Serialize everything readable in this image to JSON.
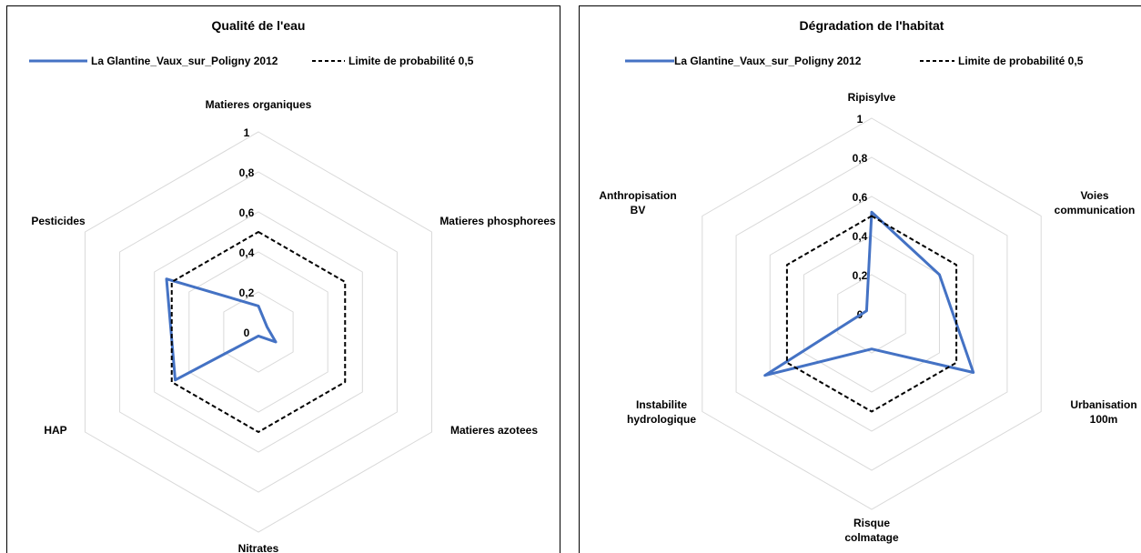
{
  "chart_data": [
    {
      "type": "radar",
      "title": "Qualité de l'eau",
      "axes": [
        "Matieres organiques",
        "Matieres phosphorees",
        "Matieres azotees",
        "Nitrates",
        "HAP",
        "Pesticides"
      ],
      "rlim": [
        0,
        1
      ],
      "ticks": [
        "0",
        "0,2",
        "0,4",
        "0,6",
        "0,8",
        "1"
      ],
      "grid": true,
      "legend_position": "top",
      "series": [
        {
          "name": "La Glantine_Vaux_sur_Poligny 2012",
          "values": [
            0.13,
            0.05,
            0.1,
            0.02,
            0.48,
            0.53
          ],
          "color": "#4472c4",
          "style": "solid"
        },
        {
          "name": "Limite de probabilité 0,5",
          "values": [
            0.5,
            0.5,
            0.5,
            0.5,
            0.5,
            0.5
          ],
          "color": "#000000",
          "style": "dashed"
        }
      ]
    },
    {
      "type": "radar",
      "title": "Dégradation de l'habitat",
      "axes": [
        "Ripisylve",
        "Voies communication",
        "Urbanisation 100m",
        "Risque colmatage",
        "Instabilite hydrologique",
        "Anthropisation BV"
      ],
      "rlim": [
        0,
        1
      ],
      "ticks": [
        "0",
        "0,2",
        "0,4",
        "0,6",
        "0,8",
        "1"
      ],
      "grid": true,
      "legend_position": "top",
      "series": [
        {
          "name": "La Glantine_Vaux_sur_Poligny 2012",
          "values": [
            0.52,
            0.4,
            0.6,
            0.18,
            0.63,
            0.03
          ],
          "color": "#4472c4",
          "style": "solid"
        },
        {
          "name": "Limite de probabilité 0,5",
          "values": [
            0.5,
            0.5,
            0.5,
            0.5,
            0.5,
            0.5
          ],
          "color": "#000000",
          "style": "dashed"
        }
      ]
    }
  ]
}
